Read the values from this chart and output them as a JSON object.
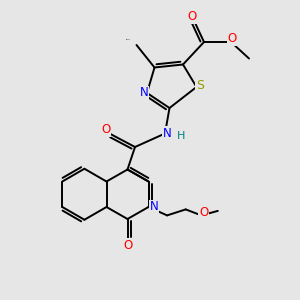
{
  "background_color": "#e6e6e6",
  "figsize": [
    3.0,
    3.0
  ],
  "dpi": 100,
  "colors": {
    "S": "#999900",
    "N": "#0000ff",
    "O": "#ff0000",
    "C": "#000000",
    "H": "#008080",
    "bond": "#000000"
  },
  "lw": 1.4,
  "fs": 8.5
}
